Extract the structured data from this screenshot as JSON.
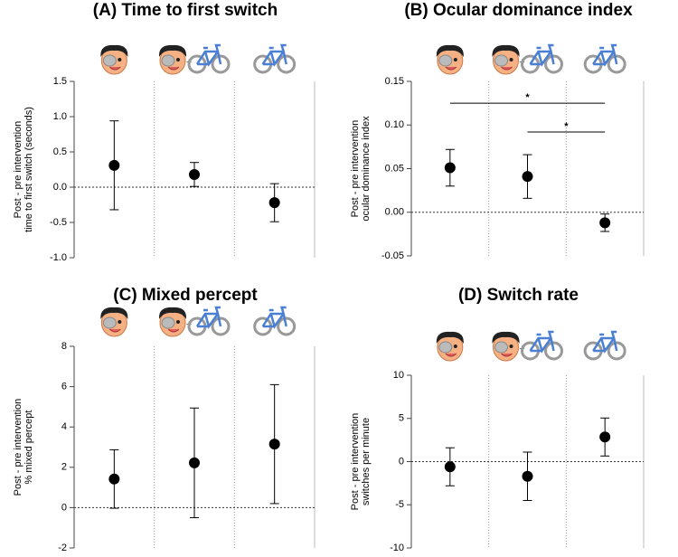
{
  "chart_data": [
    {
      "type": "errorbar",
      "title": "(A) Time to first switch",
      "ylabel": [
        "Post - pre intervention",
        "time to first switch (seconds)"
      ],
      "categories": [
        null,
        null,
        null
      ],
      "values": [
        0.31,
        0.18,
        -0.22
      ],
      "errors": [
        0.63,
        0.17,
        0.27
      ],
      "ylim": [
        -1,
        1.5
      ],
      "yticks": [
        {
          "value": -1,
          "label": "-1.0"
        },
        {
          "value": -0.5,
          "label": "-0.5"
        },
        {
          "value": 0,
          "label": "0.0"
        },
        {
          "value": 0.5,
          "label": "0.5"
        },
        {
          "value": 1,
          "label": "1.0"
        },
        {
          "value": 1.5,
          "label": "1.5"
        }
      ],
      "color": "#000000"
    },
    {
      "type": "errorbar",
      "title": "(B) Ocular dominance index",
      "ylabel": [
        "Post - pre intervention",
        "ocular dominance index"
      ],
      "categories": [
        null,
        null,
        null
      ],
      "values": [
        0.051,
        0.041,
        -0.012
      ],
      "errors": [
        0.021,
        0.025,
        0.01
      ],
      "ylim": [
        -0.05,
        0.15
      ],
      "yticks": [
        {
          "value": -0.05,
          "label": "-0.05"
        },
        {
          "value": 0,
          "label": "0.00"
        },
        {
          "value": 0.05,
          "label": "0.05"
        },
        {
          "value": 0.1,
          "label": "0.10"
        },
        {
          "value": 0.15,
          "label": "0.15"
        }
      ],
      "annotations": [
        {
          "text": "*",
          "y": 0.125,
          "x": [
            0,
            2
          ]
        },
        {
          "text": "*",
          "y": 0.092,
          "x": [
            1,
            2
          ]
        }
      ],
      "color": "#000000"
    },
    {
      "type": "errorbar",
      "title": "(C) Mixed percept",
      "ylabel": [
        "Post - pre intervention",
        "% mixed percept"
      ],
      "categories": [
        null,
        null,
        null
      ],
      "values": [
        1.42,
        2.22,
        3.15
      ],
      "errors": [
        1.45,
        2.72,
        2.95
      ],
      "ylim": [
        -2,
        8
      ],
      "yticks": [
        -2,
        0,
        2,
        4,
        6,
        8
      ],
      "color": "#000000"
    },
    {
      "type": "errorbar",
      "title": "(D) Switch rate",
      "ylabel": [
        "Post - pre intervention",
        "switches per minute"
      ],
      "categories": [
        null,
        null,
        null
      ],
      "values": [
        -0.6,
        -1.7,
        2.85
      ],
      "errors": [
        2.2,
        2.8,
        2.2
      ],
      "ylim": [
        -10,
        10
      ],
      "yticks": [
        -10,
        -5,
        0,
        5,
        10
      ],
      "color": "#000000"
    }
  ]
}
